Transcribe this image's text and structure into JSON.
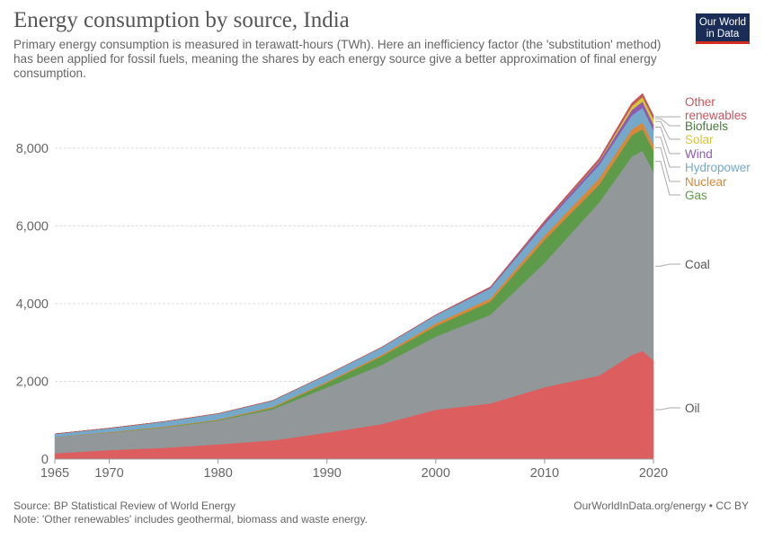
{
  "title": "Energy consumption by source, India",
  "subtitle": "Primary energy consumption is measured in terawatt-hours (TWh). Here an inefficiency factor (the 'substitution' method) has been applied for fossil fuels, meaning the shares by each energy source give a better approximation of final energy consumption.",
  "logo": {
    "line1": "Our World",
    "line2": "in Data",
    "bg_color": "#1a2d57",
    "accent_color": "#d42b21"
  },
  "footer": {
    "source": "Source: BP Statistical Review of World Energy",
    "note": "Note: 'Other renewables' includes geothermal, biomass and waste energy.",
    "credit": "OurWorldInData.org/energy • CC BY"
  },
  "chart_data": {
    "type": "area",
    "stacked": true,
    "xlim": [
      1965,
      2020
    ],
    "ylim": [
      0,
      9500
    ],
    "x_ticks": [
      {
        "value": 1965,
        "label": "1965"
      },
      {
        "value": 1970,
        "label": "1970"
      },
      {
        "value": 1980,
        "label": "1980"
      },
      {
        "value": 1990,
        "label": "1990"
      },
      {
        "value": 2000,
        "label": "2000"
      },
      {
        "value": 2010,
        "label": "2010"
      },
      {
        "value": 2020,
        "label": "2020"
      }
    ],
    "y_ticks": [
      {
        "value": 0,
        "label": "0"
      },
      {
        "value": 2000,
        "label": "2,000"
      },
      {
        "value": 4000,
        "label": "4,000"
      },
      {
        "value": 6000,
        "label": "6,000"
      },
      {
        "value": 8000,
        "label": "8,000"
      }
    ],
    "grid": "horizontal dashed",
    "legend": "right",
    "x": [
      1965,
      1970,
      1975,
      1980,
      1985,
      1990,
      1995,
      2000,
      2005,
      2010,
      2015,
      2018,
      2019,
      2020
    ],
    "series": [
      {
        "name": "Oil",
        "color": "#dc5e5e",
        "values": [
          150,
          230,
          290,
          380,
          480,
          680,
          900,
          1270,
          1430,
          1850,
          2150,
          2680,
          2780,
          2540
        ]
      },
      {
        "name": "Coal",
        "color": "#929799",
        "values": [
          420,
          450,
          520,
          610,
          800,
          1160,
          1520,
          1880,
          2280,
          3200,
          4450,
          5100,
          5150,
          4850
        ]
      },
      {
        "name": "Gas",
        "color": "#5d9b4b",
        "values": [
          0,
          5,
          10,
          15,
          40,
          120,
          220,
          270,
          340,
          590,
          460,
          550,
          560,
          540
        ]
      },
      {
        "name": "Nuclear",
        "color": "#d9883a",
        "values": [
          0,
          10,
          15,
          15,
          25,
          30,
          40,
          70,
          80,
          110,
          160,
          150,
          170,
          165
        ]
      },
      {
        "name": "Hydropower",
        "color": "#76a8c9",
        "values": [
          80,
          100,
          130,
          150,
          160,
          180,
          190,
          210,
          260,
          290,
          340,
          360,
          380,
          370
        ]
      },
      {
        "name": "Wind",
        "color": "#8e5bb0",
        "values": [
          0,
          0,
          0,
          0,
          0,
          0,
          2,
          5,
          20,
          50,
          90,
          140,
          160,
          150
        ]
      },
      {
        "name": "Solar",
        "color": "#d9c43a",
        "values": [
          0,
          0,
          0,
          0,
          0,
          0,
          0,
          0,
          0,
          2,
          20,
          100,
          120,
          140
        ]
      },
      {
        "name": "Biofuels",
        "color": "#4a7a3c",
        "values": [
          0,
          0,
          0,
          0,
          0,
          0,
          0,
          0,
          0,
          2,
          5,
          5,
          6,
          6
        ]
      },
      {
        "name": "Other renewables",
        "color": "#c8555e",
        "values": [
          0,
          0,
          0,
          0,
          0,
          0,
          5,
          10,
          20,
          40,
          60,
          75,
          85,
          85
        ]
      }
    ]
  }
}
